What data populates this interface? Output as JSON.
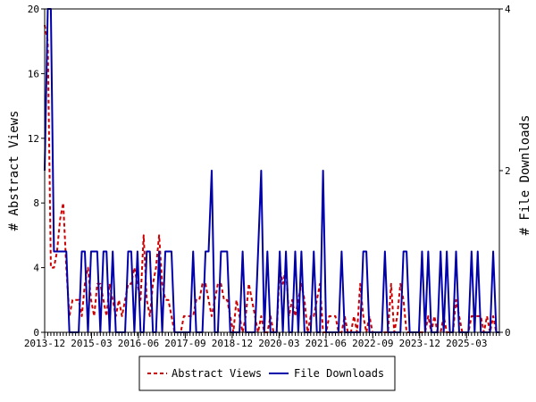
{
  "chart_data": {
    "type": "line",
    "x_tick_labels": [
      "2013-12",
      "2015-03",
      "2016-06",
      "2017-09",
      "2018-12",
      "2020-03",
      "2021-06",
      "2022-09",
      "2023-12",
      "2025-03"
    ],
    "ylabel_left": "# Abstract Views",
    "ylabel_right": "# File Downloads",
    "ylim_left": [
      0,
      20
    ],
    "ylim_right": [
      0,
      4
    ],
    "yticks_left": [
      "0",
      "4",
      "8",
      "12",
      "16",
      "20"
    ],
    "yticks_right": [
      "0",
      "2",
      "4"
    ],
    "grid": false,
    "legend_position": "bottom",
    "series": [
      {
        "name": "Abstract Views",
        "axis": "left",
        "color": "#cc0000",
        "style": "dashed",
        "values": [
          19,
          18,
          4,
          4,
          5,
          7,
          8,
          4,
          1,
          2,
          2,
          2,
          1,
          3,
          4,
          2,
          1,
          3,
          3,
          2,
          1,
          3,
          2,
          1,
          2,
          1,
          2,
          3,
          3,
          4,
          3,
          2,
          6,
          2,
          1,
          3,
          4,
          6,
          3,
          2,
          2,
          1,
          0,
          0,
          0,
          1,
          1,
          1,
          1,
          2,
          2,
          3,
          3,
          2,
          1,
          2,
          3,
          3,
          2,
          2,
          1,
          0,
          2,
          1,
          0,
          1,
          3,
          2,
          1,
          0,
          1,
          0,
          0,
          1,
          0,
          0,
          4,
          3,
          4,
          1,
          2,
          1,
          2,
          3,
          2,
          0,
          1,
          1,
          2,
          3,
          0,
          0,
          1,
          1,
          1,
          0,
          0,
          1,
          0,
          0,
          1,
          0,
          3,
          1,
          0,
          1,
          0,
          0,
          0,
          0,
          0,
          0,
          3,
          0,
          1,
          3,
          2,
          0,
          0,
          0,
          0,
          0,
          0,
          0,
          1,
          0,
          1,
          0,
          0,
          1,
          0,
          0,
          0,
          2,
          1,
          0,
          0,
          0,
          1,
          1,
          1,
          1,
          0,
          1,
          0,
          1,
          0,
          0
        ]
      },
      {
        "name": "File Downloads",
        "axis": "right",
        "color": "#0000aa",
        "style": "solid",
        "values": [
          2,
          4,
          4,
          1,
          1,
          1,
          1,
          1,
          0,
          0,
          0,
          0,
          1,
          1,
          0,
          1,
          1,
          1,
          0,
          1,
          1,
          0,
          1,
          0,
          0,
          0,
          0,
          1,
          1,
          0,
          1,
          0,
          0,
          1,
          1,
          0,
          0,
          1,
          0,
          1,
          1,
          1,
          0,
          0,
          0,
          0,
          0,
          0,
          1,
          0,
          0,
          0,
          1,
          1,
          2,
          0,
          0,
          1,
          1,
          1,
          0,
          0,
          0,
          0,
          1,
          0,
          0,
          0,
          0,
          1,
          2,
          0,
          1,
          0,
          0,
          0,
          1,
          0,
          1,
          0,
          0,
          1,
          0,
          1,
          0,
          0,
          0,
          1,
          0,
          0,
          2,
          0,
          0,
          0,
          0,
          0,
          1,
          0,
          0,
          0,
          0,
          0,
          0,
          1,
          1,
          0,
          0,
          0,
          0,
          0,
          1,
          0,
          0,
          0,
          0,
          0,
          1,
          1,
          0,
          0,
          0,
          0,
          1,
          0,
          1,
          0,
          0,
          0,
          1,
          0,
          1,
          0,
          0,
          1,
          0,
          0,
          0,
          0,
          1,
          0,
          1,
          0,
          0,
          0,
          0,
          1,
          0,
          0
        ]
      }
    ]
  }
}
